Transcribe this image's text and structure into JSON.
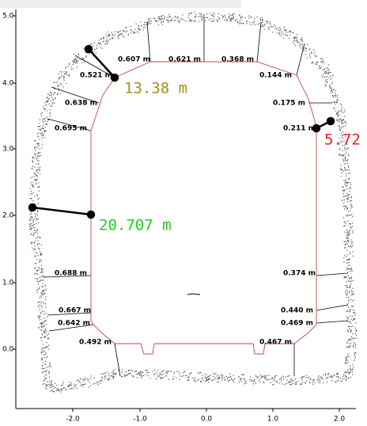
{
  "axes": {
    "x_ticks": [
      "-2.0",
      "-1.0",
      "0.0",
      "1.0",
      "2.0"
    ],
    "y_ticks": [
      "5.0",
      "4.0",
      "3.0",
      "2.0",
      "1.0",
      "0.0"
    ]
  },
  "measurements": [
    "0.607 m",
    "0.621 m",
    "0.368 m",
    "0.521 m",
    "0.144 m",
    "0.638 m",
    "0.175 m",
    "0.695 m",
    "0.211 m",
    "0.688 m",
    "0.374 m",
    "0.667 m",
    "0.440 m",
    "0.642 m",
    "0.469 m",
    "0.492 m",
    "0.467 m"
  ],
  "highlights": [
    "13.38 m",
    "5.72",
    "20.707 m"
  ]
}
